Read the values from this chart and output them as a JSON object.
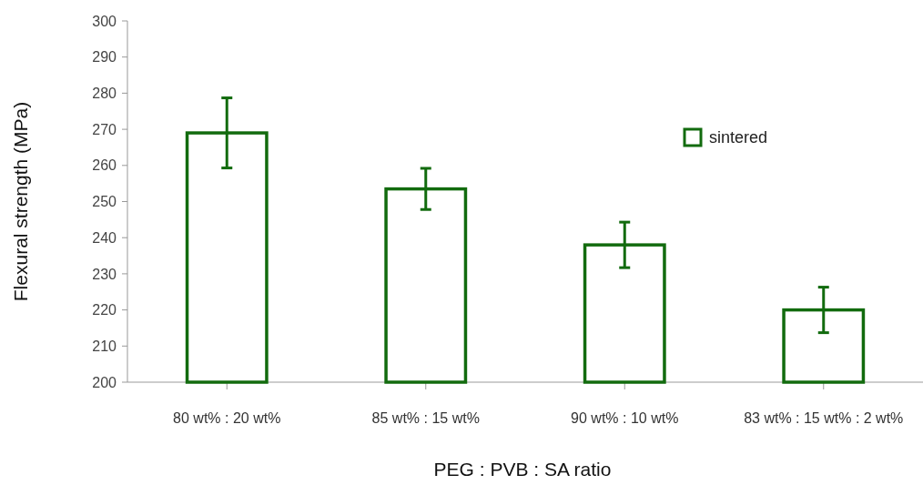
{
  "chart_data": {
    "type": "bar",
    "xlabel": "PEG : PVB : SA ratio",
    "ylabel": "Flexural strength (MPa)",
    "categories": [
      "80 wt% : 20 wt%",
      "85 wt% : 15 wt%",
      "90 wt% : 10 wt%",
      "83 wt% : 15 wt% : 2 wt%"
    ],
    "series": [
      {
        "name": "sintered",
        "color": "#126b0e",
        "values": [
          269,
          253.5,
          238,
          220
        ],
        "errors": [
          9.7,
          5.7,
          6.3,
          6.3
        ]
      }
    ],
    "ylim": [
      200,
      300
    ],
    "yticks": [
      200,
      210,
      220,
      230,
      240,
      250,
      260,
      270,
      280,
      290,
      300
    ],
    "grid": false,
    "legend": "top right"
  }
}
